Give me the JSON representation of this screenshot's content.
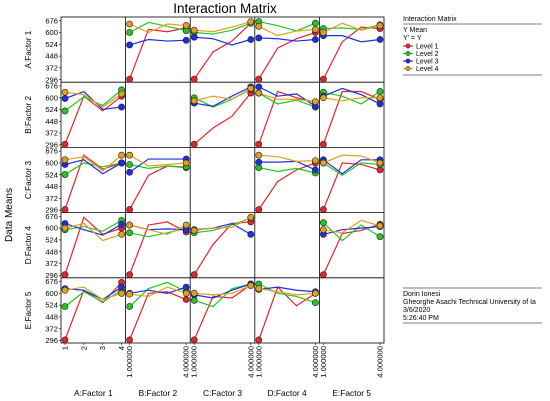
{
  "chart_data": {
    "type": "line",
    "title": "Interaction Matrix",
    "ylabel": "Data Means",
    "y_ticks": [
      296,
      372,
      448,
      524,
      600,
      676
    ],
    "ylim": [
      280,
      700
    ],
    "factors": [
      {
        "name": "A:Factor 1",
        "levels": [
          "1",
          "2",
          "3",
          "4"
        ]
      },
      {
        "name": "B:Factor 2",
        "levels": [
          "1.000000",
          "4.000000"
        ]
      },
      {
        "name": "C:Factor 3",
        "levels": [
          "1.000000",
          "4.000000"
        ]
      },
      {
        "name": "D:Factor 4",
        "levels": [
          "1.000000",
          "4.000000"
        ]
      },
      {
        "name": "E:Factor 5",
        "levels": [
          "1.000000",
          "4.000000"
        ]
      }
    ],
    "series_names": [
      "Level 1",
      "Level 2",
      "Level 3",
      "Level 4"
    ],
    "series_colors": [
      "#e8242a",
      "#22c822",
      "#1f2ee0",
      "#e0a020"
    ],
    "cells": [
      {
        "row": 0,
        "col": 1,
        "x": [
          1,
          2,
          3,
          4
        ],
        "series": [
          [
            300,
            620,
            605,
            630
          ],
          [
            600,
            665,
            640,
            612
          ],
          [
            520,
            555,
            545,
            550
          ],
          [
            655,
            600,
            655,
            645
          ]
        ]
      },
      {
        "row": 0,
        "col": 2,
        "x": [
          1,
          2,
          3,
          4
        ],
        "series": [
          [
            300,
            475,
            545,
            660
          ],
          [
            600,
            590,
            615,
            660
          ],
          [
            570,
            560,
            520,
            555
          ],
          [
            615,
            605,
            635,
            670
          ]
        ]
      },
      {
        "row": 0,
        "col": 3,
        "x": [
          1,
          2,
          3,
          4
        ],
        "series": [
          [
            300,
            500,
            560,
            600
          ],
          [
            670,
            645,
            610,
            660
          ],
          [
            565,
            560,
            545,
            555
          ],
          [
            640,
            580,
            610,
            620
          ]
        ]
      },
      {
        "row": 0,
        "col": 4,
        "x": [
          1,
          2,
          3,
          4
        ],
        "series": [
          [
            300,
            540,
            635,
            625
          ],
          [
            625,
            630,
            620,
            650
          ],
          [
            580,
            580,
            540,
            555
          ],
          [
            600,
            660,
            615,
            645
          ]
        ]
      },
      {
        "row": 1,
        "col": 0,
        "x": [
          1,
          2,
          3,
          4
        ],
        "series": [
          [
            300,
            610,
            515,
            610
          ],
          [
            515,
            605,
            550,
            650
          ],
          [
            595,
            640,
            525,
            540
          ],
          [
            635,
            620,
            540,
            625
          ]
        ]
      },
      {
        "row": 1,
        "col": 2,
        "x": [
          1,
          2,
          3,
          4
        ],
        "series": [
          [
            300,
            405,
            480,
            630
          ],
          [
            600,
            540,
            590,
            655
          ],
          [
            565,
            545,
            610,
            670
          ],
          [
            580,
            610,
            590,
            660
          ]
        ]
      },
      {
        "row": 1,
        "col": 3,
        "x": [
          1,
          2,
          3,
          4
        ],
        "series": [
          [
            300,
            640,
            600,
            570
          ],
          [
            630,
            560,
            585,
            540
          ],
          [
            670,
            610,
            625,
            545
          ],
          [
            630,
            590,
            590,
            575
          ]
        ]
      },
      {
        "row": 1,
        "col": 4,
        "x": [
          1,
          2,
          3,
          4
        ],
        "series": [
          [
            300,
            640,
            640,
            590
          ],
          [
            635,
            610,
            560,
            640
          ],
          [
            610,
            660,
            620,
            560
          ],
          [
            600,
            580,
            600,
            600
          ]
        ]
      },
      {
        "row": 2,
        "col": 0,
        "x": [
          1,
          2,
          3,
          4
        ],
        "series": [
          [
            300,
            650,
            560,
            600
          ],
          [
            525,
            600,
            575,
            600
          ],
          [
            590,
            620,
            530,
            600
          ],
          [
            620,
            640,
            550,
            650
          ]
        ]
      },
      {
        "row": 2,
        "col": 1,
        "x": [
          1,
          2,
          3,
          4
        ],
        "series": [
          [
            300,
            520,
            580,
            570
          ],
          [
            590,
            565,
            580,
            575
          ],
          [
            540,
            625,
            625,
            625
          ],
          [
            650,
            580,
            590,
            600
          ]
        ]
      },
      {
        "row": 2,
        "col": 3,
        "x": [
          1,
          2,
          3,
          4
        ],
        "series": [
          [
            300,
            480,
            555,
            600
          ],
          [
            570,
            545,
            565,
            535
          ],
          [
            605,
            605,
            610,
            555
          ],
          [
            650,
            640,
            610,
            615
          ]
        ]
      },
      {
        "row": 2,
        "col": 4,
        "x": [
          1,
          2,
          3,
          4
        ],
        "series": [
          [
            300,
            600,
            590,
            555
          ],
          [
            600,
            520,
            600,
            590
          ],
          [
            620,
            530,
            620,
            620
          ],
          [
            600,
            650,
            645,
            600
          ]
        ]
      },
      {
        "row": 3,
        "col": 0,
        "x": [
          1,
          2,
          3,
          4
        ],
        "series": [
          [
            300,
            670,
            560,
            600
          ],
          [
            590,
            610,
            580,
            650
          ],
          [
            630,
            590,
            555,
            625
          ],
          [
            600,
            630,
            520,
            560
          ]
        ]
      },
      {
        "row": 3,
        "col": 1,
        "x": [
          1,
          2,
          3,
          4
        ],
        "series": [
          [
            300,
            620,
            640,
            575
          ],
          [
            570,
            545,
            570,
            600
          ],
          [
            620,
            590,
            595,
            590
          ],
          [
            620,
            590,
            560,
            620
          ]
        ]
      },
      {
        "row": 3,
        "col": 2,
        "x": [
          1,
          2,
          3,
          4
        ],
        "series": [
          [
            300,
            495,
            630,
            640
          ],
          [
            570,
            585,
            620,
            665
          ],
          [
            590,
            600,
            630,
            560
          ],
          [
            585,
            600,
            605,
            670
          ]
        ]
      },
      {
        "row": 3,
        "col": 4,
        "x": [
          1,
          2,
          3,
          4
        ],
        "series": [
          [
            300,
            565,
            585,
            625
          ],
          [
            635,
            520,
            620,
            545
          ],
          [
            560,
            590,
            600,
            610
          ],
          [
            590,
            570,
            650,
            615
          ]
        ]
      },
      {
        "row": 4,
        "col": 0,
        "x": [
          1,
          2,
          3,
          4
        ],
        "series": [
          [
            300,
            620,
            540,
            670
          ],
          [
            515,
            610,
            545,
            620
          ],
          [
            630,
            620,
            560,
            640
          ],
          [
            620,
            640,
            560,
            600
          ]
        ]
      },
      {
        "row": 4,
        "col": 1,
        "x": [
          1,
          2,
          3,
          4
        ],
        "series": [
          [
            300,
            600,
            610,
            560
          ],
          [
            515,
            630,
            670,
            610
          ],
          [
            600,
            620,
            600,
            640
          ],
          [
            595,
            580,
            640,
            600
          ]
        ]
      },
      {
        "row": 4,
        "col": 2,
        "x": [
          1,
          2,
          3,
          4
        ],
        "series": [
          [
            300,
            580,
            570,
            655
          ],
          [
            555,
            515,
            630,
            660
          ],
          [
            590,
            570,
            620,
            660
          ],
          [
            600,
            590,
            600,
            650
          ]
        ]
      },
      {
        "row": 4,
        "col": 3,
        "x": [
          1,
          2,
          3,
          4
        ],
        "series": [
          [
            300,
            640,
            520,
            600
          ],
          [
            660,
            600,
            580,
            540
          ],
          [
            625,
            640,
            620,
            610
          ],
          [
            630,
            610,
            590,
            600
          ]
        ]
      }
    ]
  },
  "legend": {
    "title": "Interaction Matrix",
    "subtitle1": "Y Mean",
    "subtitle2": "Y' = Y",
    "items": [
      "Level 1",
      "Level 2",
      "Level 3",
      "Level 4"
    ]
  },
  "info": {
    "author": "Dorin Ionesi",
    "affiliation": "Gheorghe Asachi Technical University of Ia",
    "date": "3/6/2020",
    "time": "5:26:40 PM"
  }
}
